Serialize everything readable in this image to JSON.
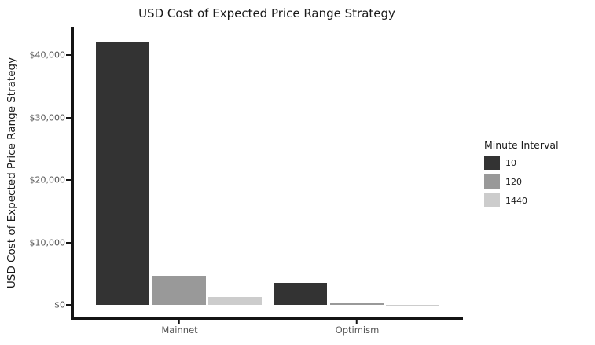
{
  "chart_data": {
    "type": "bar",
    "title": "USD Cost of Expected Price Range Strategy",
    "xlabel": "",
    "ylabel": "USD Cost of Expected Price Range Strategy",
    "categories": [
      "Mainnet",
      "Optimism"
    ],
    "series": [
      {
        "name": "10",
        "color": "#333333",
        "values": [
          42000,
          3500
        ]
      },
      {
        "name": "120",
        "color": "#999999",
        "values": [
          4700,
          400
        ]
      },
      {
        "name": "1440",
        "color": "#cccccc",
        "values": [
          1200,
          30
        ]
      }
    ],
    "yticks": [
      {
        "label": "$0",
        "value": 0
      },
      {
        "label": "$10,000",
        "value": 10000
      },
      {
        "label": "$20,000",
        "value": 20000
      },
      {
        "label": "$30,000",
        "value": 30000
      },
      {
        "label": "$40,000",
        "value": 40000
      }
    ],
    "ylim": [
      0,
      44500
    ],
    "grid": false,
    "legend": {
      "title": "Minute Interval",
      "position": "right",
      "entries": [
        "10",
        "120",
        "1440"
      ]
    }
  },
  "colors": {
    "background": "#ffffff",
    "axis": "#141414",
    "tick_label": "#555555",
    "text": "#1a1a1a"
  }
}
